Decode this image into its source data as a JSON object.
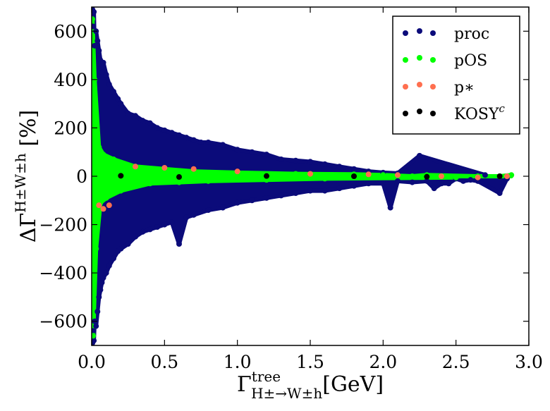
{
  "chart_data": {
    "type": "scatter",
    "xlabel": "Γ^tree_{H±→W±h} [GeV]",
    "ylabel": "ΔΓ^{H±W±h} [%]",
    "xlim": [
      0.0,
      3.0
    ],
    "ylim": [
      -700,
      700
    ],
    "x_ticks": [
      0.0,
      0.5,
      1.0,
      1.5,
      2.0,
      2.5,
      3.0
    ],
    "x_tick_labels": [
      "0.0",
      "0.5",
      "1.0",
      "1.5",
      "2.0",
      "2.5",
      "3.0"
    ],
    "y_ticks": [
      -600,
      -400,
      -200,
      0,
      200,
      400,
      600
    ],
    "y_tick_labels": [
      "−600",
      "−400",
      "−200",
      "0",
      "200",
      "400",
      "600"
    ],
    "grid": false,
    "legend_position": "top-right",
    "colors": {
      "proc": "#0b0b7a",
      "pOS": "#00ff00",
      "pstar": "#ff6f4f",
      "KOSY": "#000000"
    },
    "legend": [
      {
        "key": "proc",
        "label": "proc",
        "color": "#0b0b7a"
      },
      {
        "key": "pOS",
        "label": "pOS",
        "color": "#00ff00"
      },
      {
        "key": "pstar",
        "label": "p∗",
        "color": "#ff6f4f"
      },
      {
        "key": "KOSY",
        "label": "KOSY",
        "sup": "c",
        "color": "#000000"
      }
    ],
    "series": [
      {
        "key": "proc",
        "name": "proc",
        "color": "#0b0b7a",
        "points": [
          [
            0.005,
            690
          ],
          [
            0.01,
            620
          ],
          [
            0.015,
            680
          ],
          [
            0.02,
            540
          ],
          [
            0.03,
            600
          ],
          [
            0.04,
            560
          ],
          [
            0.05,
            520
          ],
          [
            0.06,
            480
          ],
          [
            0.07,
            430
          ],
          [
            0.08,
            470
          ],
          [
            0.1,
            420
          ],
          [
            0.12,
            380
          ],
          [
            0.15,
            350
          ],
          [
            0.18,
            320
          ],
          [
            0.2,
            300
          ],
          [
            0.25,
            260
          ],
          [
            0.3,
            250
          ],
          [
            0.35,
            230
          ],
          [
            0.4,
            220
          ],
          [
            0.45,
            200
          ],
          [
            0.5,
            190
          ],
          [
            0.55,
            180
          ],
          [
            0.6,
            170
          ],
          [
            0.65,
            160
          ],
          [
            0.7,
            150
          ],
          [
            0.75,
            140
          ],
          [
            0.8,
            140
          ],
          [
            0.9,
            130
          ],
          [
            1.0,
            110
          ],
          [
            1.1,
            100
          ],
          [
            1.2,
            90
          ],
          [
            1.3,
            70
          ],
          [
            1.4,
            65
          ],
          [
            1.5,
            60
          ],
          [
            1.6,
            50
          ],
          [
            1.7,
            40
          ],
          [
            1.8,
            30
          ],
          [
            1.9,
            20
          ],
          [
            2.0,
            15
          ],
          [
            2.1,
            12
          ],
          [
            2.25,
            85
          ],
          [
            2.3,
            -20
          ],
          [
            2.4,
            -30
          ],
          [
            2.5,
            -10
          ],
          [
            2.6,
            -15
          ],
          [
            2.7,
            5
          ],
          [
            2.85,
            -10
          ],
          [
            0.005,
            -690
          ],
          [
            0.01,
            -640
          ],
          [
            0.015,
            -680
          ],
          [
            0.02,
            -600
          ],
          [
            0.03,
            -620
          ],
          [
            0.04,
            -560
          ],
          [
            0.05,
            -500
          ],
          [
            0.06,
            -470
          ],
          [
            0.07,
            -440
          ],
          [
            0.08,
            -420
          ],
          [
            0.1,
            -400
          ],
          [
            0.12,
            -370
          ],
          [
            0.15,
            -340
          ],
          [
            0.18,
            -310
          ],
          [
            0.2,
            -300
          ],
          [
            0.25,
            -280
          ],
          [
            0.3,
            -250
          ],
          [
            0.35,
            -230
          ],
          [
            0.4,
            -220
          ],
          [
            0.45,
            -210
          ],
          [
            0.5,
            -200
          ],
          [
            0.55,
            -190
          ],
          [
            0.6,
            -280
          ],
          [
            0.65,
            -170
          ],
          [
            0.7,
            -160
          ],
          [
            0.8,
            -140
          ],
          [
            0.9,
            -130
          ],
          [
            1.0,
            -110
          ],
          [
            1.1,
            -100
          ],
          [
            1.2,
            -90
          ],
          [
            1.3,
            -80
          ],
          [
            1.4,
            -70
          ],
          [
            1.5,
            -60
          ],
          [
            1.6,
            -60
          ],
          [
            1.7,
            -50
          ],
          [
            1.8,
            -40
          ],
          [
            1.9,
            -30
          ],
          [
            2.0,
            -30
          ],
          [
            2.05,
            -130
          ],
          [
            2.1,
            -20
          ],
          [
            2.2,
            -25
          ],
          [
            2.35,
            -50
          ],
          [
            2.45,
            -30
          ],
          [
            2.55,
            -20
          ],
          [
            2.65,
            -20
          ],
          [
            2.8,
            -70
          ]
        ]
      },
      {
        "key": "pOS",
        "name": "pOS",
        "color": "#00ff00",
        "points": [
          [
            0.005,
            650
          ],
          [
            0.01,
            -660
          ],
          [
            0.02,
            400
          ],
          [
            0.03,
            -300
          ],
          [
            0.05,
            120
          ],
          [
            0.06,
            -110
          ],
          [
            0.08,
            90
          ],
          [
            0.1,
            -90
          ],
          [
            0.15,
            70
          ],
          [
            0.2,
            -60
          ],
          [
            0.3,
            40
          ],
          [
            0.4,
            -30
          ],
          [
            0.5,
            30
          ],
          [
            0.6,
            -25
          ],
          [
            0.7,
            20
          ],
          [
            0.8,
            -20
          ],
          [
            1.0,
            15
          ],
          [
            1.2,
            -15
          ],
          [
            1.4,
            10
          ],
          [
            1.6,
            -10
          ],
          [
            1.8,
            8
          ],
          [
            2.0,
            5
          ],
          [
            2.2,
            0
          ],
          [
            2.3,
            5
          ],
          [
            2.5,
            -5
          ],
          [
            2.65,
            0
          ],
          [
            2.8,
            0
          ],
          [
            2.88,
            5
          ]
        ]
      },
      {
        "key": "pstar",
        "name": "p∗",
        "color": "#ff6f4f",
        "points": [
          [
            0.05,
            -120
          ],
          [
            0.08,
            -135
          ],
          [
            0.12,
            -120
          ],
          [
            0.3,
            40
          ],
          [
            0.5,
            35
          ],
          [
            0.7,
            30
          ],
          [
            1.0,
            20
          ],
          [
            1.5,
            10
          ],
          [
            1.9,
            8
          ],
          [
            2.1,
            5
          ],
          [
            2.4,
            0
          ],
          [
            2.65,
            -5
          ],
          [
            2.85,
            0
          ]
        ]
      },
      {
        "key": "KOSY",
        "name": "KOSY^c",
        "color": "#000000",
        "points": [
          [
            0.2,
            2
          ],
          [
            0.6,
            -3
          ],
          [
            1.2,
            1
          ],
          [
            1.8,
            0
          ],
          [
            2.3,
            -2
          ],
          [
            2.8,
            0
          ]
        ]
      }
    ]
  }
}
